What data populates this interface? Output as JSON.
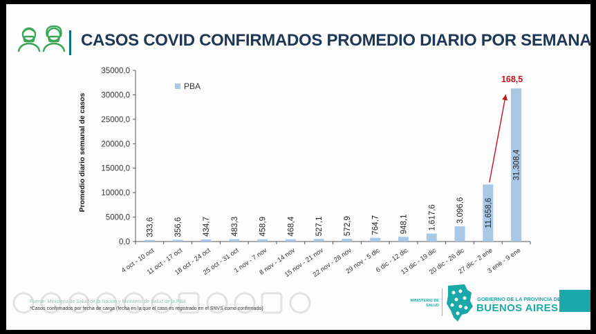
{
  "header": {
    "title": "CASOS COVID CONFIRMADOS PROMEDIO DIARIO POR SEMANA"
  },
  "colors": {
    "bar": "#a8c8e6",
    "title": "#1e3756",
    "accent_teal": "#1aa9a8",
    "arrow": "#c0141d"
  },
  "chart_data": {
    "type": "bar",
    "title": "",
    "ylabel": "Promedio diario semanal de casos",
    "xlabel": "",
    "ylim": [
      0,
      35000
    ],
    "yticks": [
      0,
      5000,
      10000,
      15000,
      20000,
      25000,
      30000,
      35000
    ],
    "ytick_labels": [
      "0,0",
      "5000,0",
      "10000,0",
      "15000,0",
      "20000,0",
      "25000,0",
      "30000,0",
      "35000,0"
    ],
    "legend": {
      "position": "top-left",
      "entries": [
        "PBA"
      ]
    },
    "grid": false,
    "categories": [
      "4 oct - 10 oct",
      "11 oct - 17 oct",
      "18 oct - 24 oct",
      "25 oct - 31 oct",
      "1 nov - 7 nov",
      "8 nov - 14 nov",
      "15 nov - 21 nov",
      "22 nov - 28 nov",
      "29 nov - 5 dic",
      "6 dic - 12 dic",
      "13 dic - 19 dic",
      "20 dic - 26 dic",
      "27 dic - 2 ene",
      "3 ene - 9 ene"
    ],
    "series": [
      {
        "name": "PBA",
        "values": [
          333.6,
          356.6,
          434.7,
          483.3,
          458.9,
          468.4,
          527.1,
          572.9,
          764.7,
          948.1,
          1617.6,
          3096.6,
          11658.6,
          31308.4
        ],
        "labels": [
          "333,6",
          "356,6",
          "434,7",
          "483,3",
          "458,9",
          "468,4",
          "527,1",
          "572,9",
          "764,7",
          "948,1",
          "1.617,6",
          "3.096,6",
          "11.658,6",
          "31.308,4"
        ]
      }
    ],
    "annotation": {
      "text": "168,5",
      "from_category": "27 dic - 2 ene",
      "to_category": "3 ene - 9 ene"
    }
  },
  "footer": {
    "source": "Fuente: Ministerio de Salud de la Nación y Ministerio de Salud de la PBA",
    "note": "*Casos confirmados por fecha de carga (fecha en la que el caso es registrado en el SNVS como confirmado)",
    "ministerio": "MINISTERIO DE SALUD",
    "gobierno": "GOBIERNO DE LA PROVINCIA DE",
    "provincia": "BUENOS AIRES"
  }
}
